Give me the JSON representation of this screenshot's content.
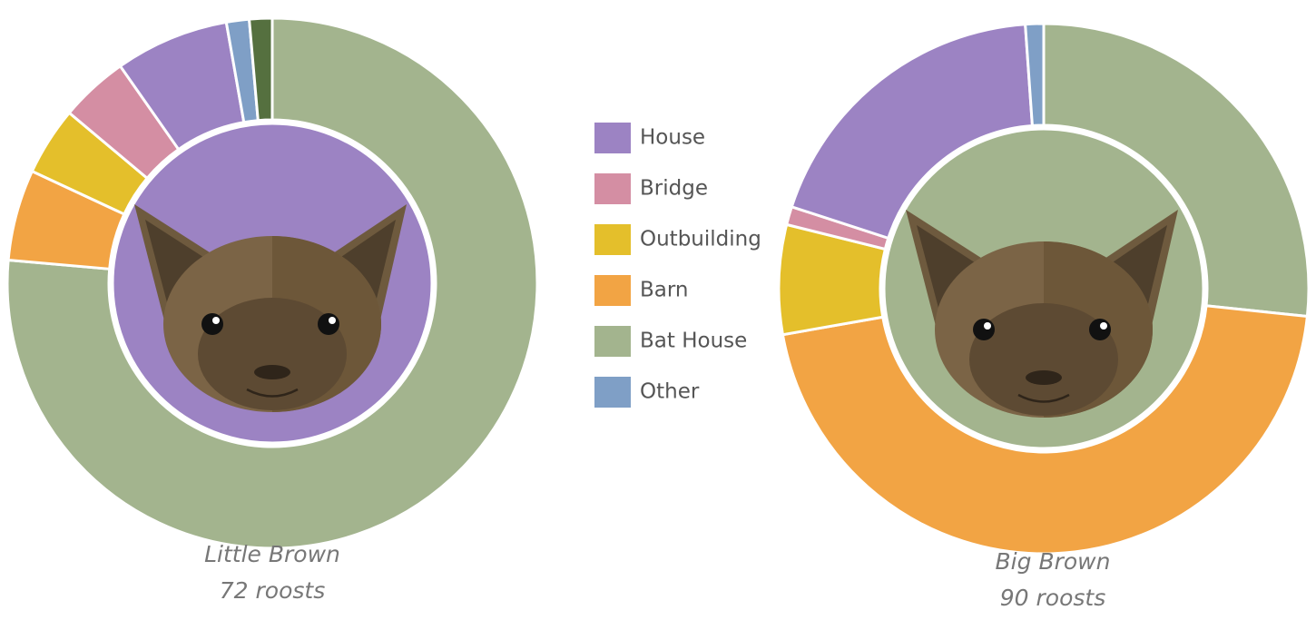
{
  "chart_data": [
    {
      "type": "donut",
      "label": "Little Brown",
      "note": "72 roosts",
      "categories": [
        "Bat House",
        "Barn",
        "Outbuilding",
        "Bridge",
        "House",
        "Other",
        null
      ],
      "values": [
        55,
        4,
        3,
        3,
        5,
        1,
        1
      ],
      "colors": [
        "#a3b48e",
        "#f2a444",
        "#e4bf2b",
        "#d48ea3",
        "#9c83c3",
        "#7f9fc6",
        "#55703f"
      ],
      "center_color": "#9c83c3"
    },
    {
      "type": "donut",
      "label": "Big Brown",
      "note": "90 roosts",
      "categories": [
        "Bat House",
        "Barn",
        "Outbuilding",
        "Bridge",
        "House",
        "Other"
      ],
      "values": [
        24,
        41,
        6,
        1,
        17,
        1
      ],
      "colors": [
        "#a3b48e",
        "#f2a444",
        "#e4bf2b",
        "#d48ea3",
        "#9c83c3",
        "#7f9fc6"
      ],
      "center_color": "#a3b48e"
    }
  ]
}
